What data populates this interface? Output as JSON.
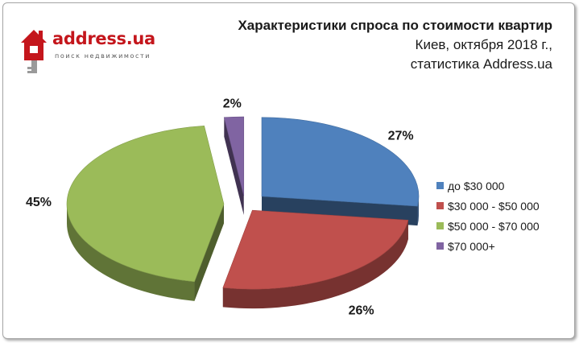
{
  "logo": {
    "name": "address.ua",
    "tagline": "поиск недвижимости"
  },
  "header": {
    "title": "Характеристики спроса по стоимости квартир",
    "subtitle_line1": "Киев, октября 2018 г.,",
    "subtitle_line2": "статистика Address.ua"
  },
  "chart_data": {
    "type": "pie",
    "title": "Характеристики спроса по стоимости квартир",
    "slices": [
      {
        "label": "до $30 000",
        "value": 27,
        "data_label": "27%",
        "color": "#4f81bd"
      },
      {
        "label": "$30 000 - $50 000",
        "value": 26,
        "data_label": "26%",
        "color": "#c0504d"
      },
      {
        "label": "$50 000 - $70 000",
        "value": 45,
        "data_label": "45%",
        "color": "#9bbb59"
      },
      {
        "label": "$70 000+",
        "value": 2,
        "data_label": "2%",
        "color": "#8064a2"
      }
    ],
    "style": "3d-exploded",
    "legend_position": "right"
  },
  "colors": {
    "brand": "#c4161c",
    "frame": "#a6a6a6"
  },
  "icons": {
    "logo_icon": "house-key-icon"
  }
}
